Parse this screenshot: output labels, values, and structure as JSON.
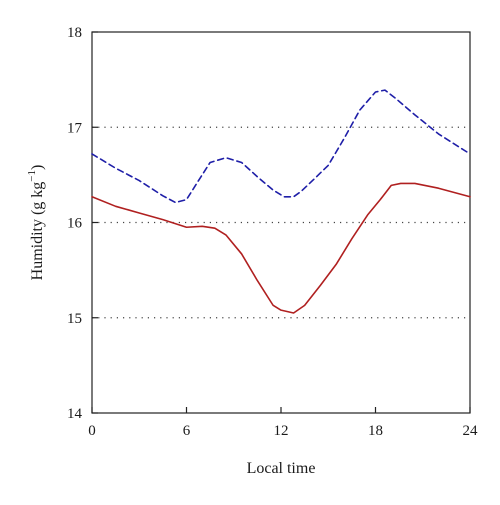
{
  "chart_data": {
    "type": "line",
    "xlabel": "Local time",
    "ylabel": "Humidity (g kg",
    "ylabel_sup": "−1",
    "ylabel_close": ")",
    "xlim": [
      0,
      24
    ],
    "ylim": [
      14,
      18
    ],
    "xticks": [
      0,
      6,
      12,
      18,
      24
    ],
    "xtick_labels": [
      "0",
      "6",
      "12",
      "18",
      "24"
    ],
    "yticks": [
      14,
      15,
      16,
      17,
      18
    ],
    "ytick_labels": [
      "14",
      "15",
      "16",
      "17",
      "18"
    ],
    "grid": "horizontal dotted at 15, 16, 17",
    "gridlines_y": [
      15,
      16,
      17
    ],
    "legend": "none",
    "series": [
      {
        "style": "dashed",
        "color": "#1f1fa8",
        "x": [
          0,
          1.5,
          3,
          4.5,
          5.3,
          6,
          6.8,
          7.5,
          8.5,
          9.5,
          10.5,
          11.5,
          12.2,
          12.8,
          13.3,
          14,
          15,
          16,
          17,
          18,
          18.6,
          19.3,
          20.5,
          22,
          24
        ],
        "y": [
          16.72,
          16.57,
          16.44,
          16.28,
          16.21,
          16.24,
          16.45,
          16.63,
          16.68,
          16.63,
          16.48,
          16.34,
          16.27,
          16.27,
          16.33,
          16.44,
          16.6,
          16.88,
          17.18,
          17.37,
          17.39,
          17.3,
          17.13,
          16.93,
          16.72
        ]
      },
      {
        "style": "solid",
        "color": "#b02020",
        "x": [
          0,
          1.5,
          3,
          4.5,
          6,
          7,
          7.8,
          8.5,
          9.5,
          10.5,
          11.5,
          12,
          12.8,
          13.5,
          14.5,
          15.5,
          16.5,
          17.5,
          18.3,
          19,
          19.6,
          20.5,
          22,
          24
        ],
        "y": [
          16.27,
          16.17,
          16.1,
          16.03,
          15.95,
          15.96,
          15.94,
          15.87,
          15.67,
          15.39,
          15.13,
          15.08,
          15.05,
          15.13,
          15.34,
          15.56,
          15.83,
          16.08,
          16.24,
          16.39,
          16.41,
          16.41,
          16.36,
          16.27
        ]
      }
    ]
  }
}
